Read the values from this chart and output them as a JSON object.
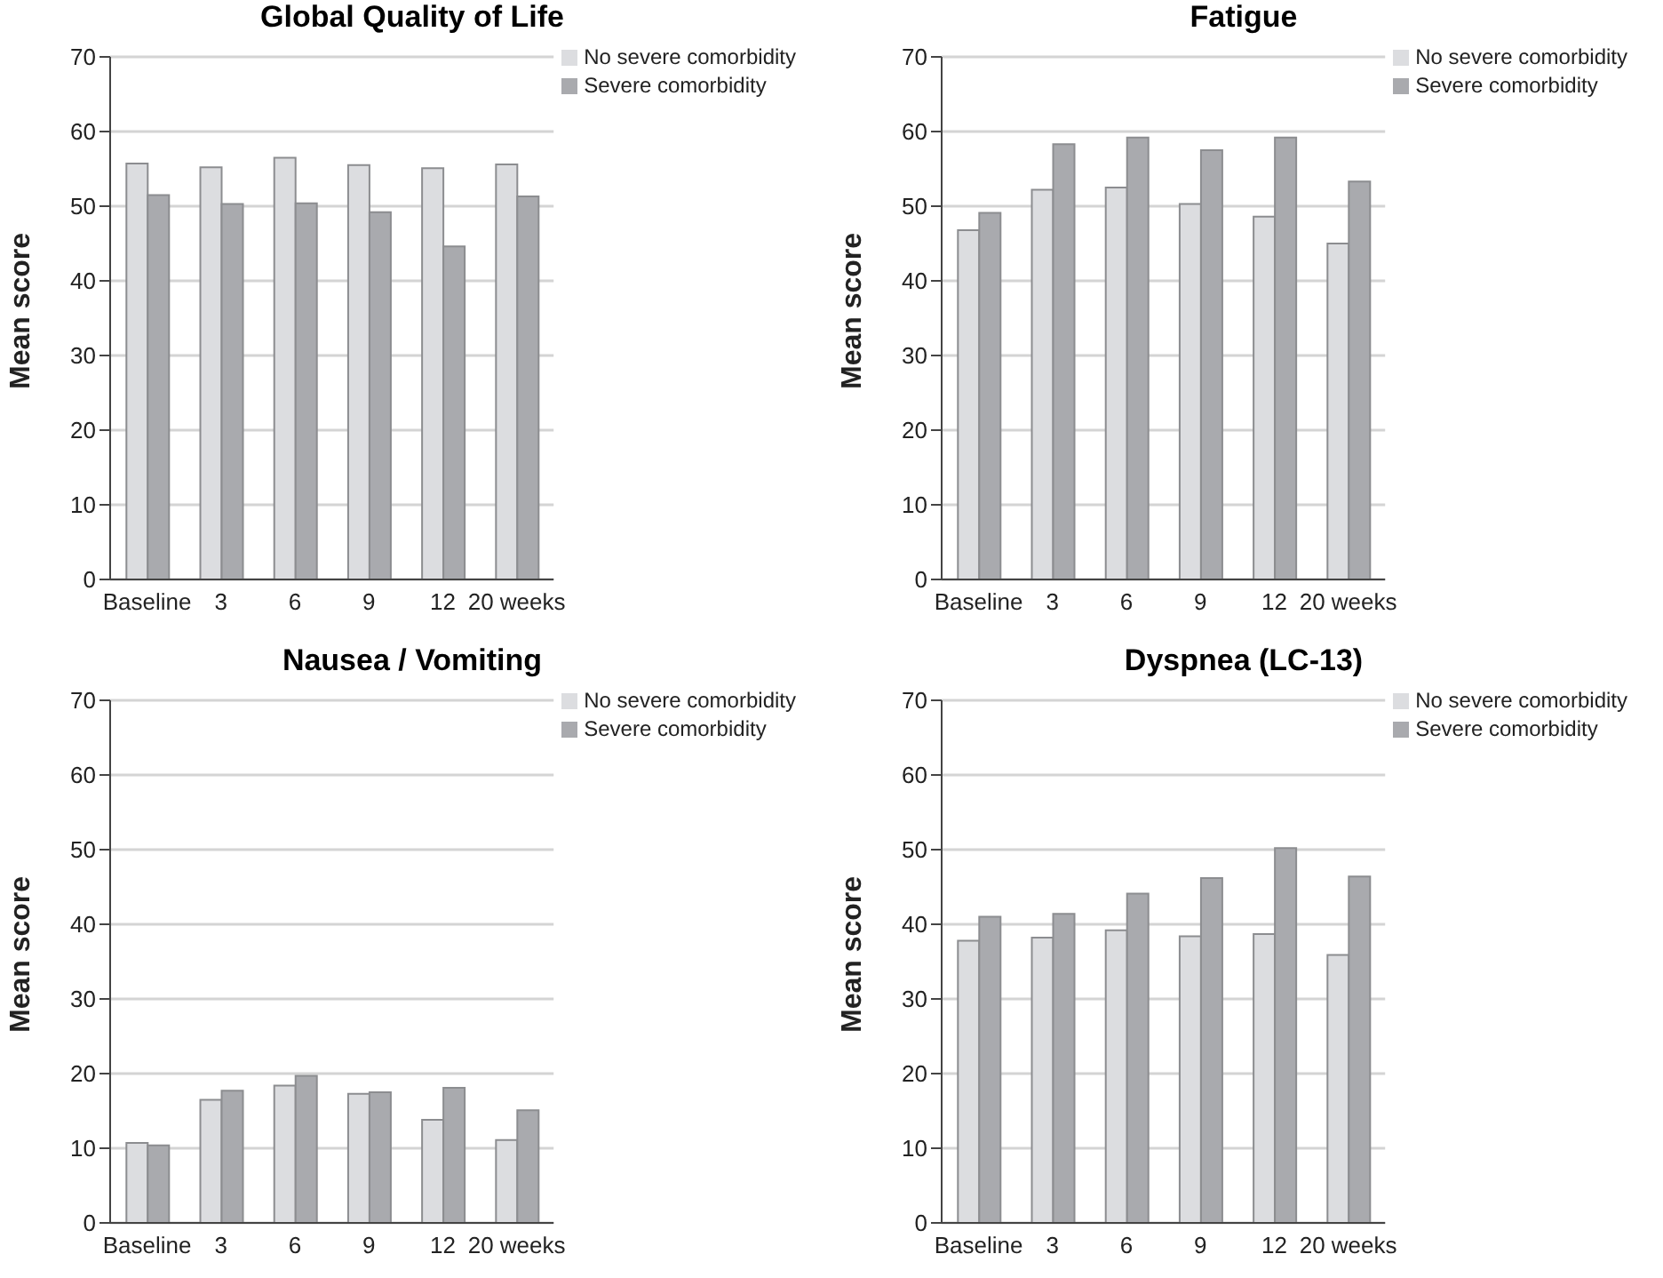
{
  "chart_data": [
    {
      "type": "bar",
      "title": "Global Quality of Life",
      "ylabel": "Mean score",
      "categories": [
        "Baseline",
        "3",
        "6",
        "9",
        "12",
        "20 weeks"
      ],
      "series": [
        {
          "name": "No severe comorbidity",
          "color": "#dcdde0",
          "values": [
            55.7,
            55.2,
            56.5,
            55.5,
            55.1,
            55.6
          ]
        },
        {
          "name": "Severe comorbidity",
          "color": "#a9aaae",
          "values": [
            51.5,
            50.3,
            50.4,
            49.2,
            44.6,
            51.3
          ]
        }
      ],
      "ylim": [
        0,
        70
      ],
      "yticks": [
        0,
        10,
        20,
        30,
        40,
        50,
        60,
        70
      ],
      "grid": "y",
      "legend": "top right"
    },
    {
      "type": "bar",
      "title": "Fatigue",
      "ylabel": "Mean score",
      "categories": [
        "Baseline",
        "3",
        "6",
        "9",
        "12",
        "20 weeks"
      ],
      "series": [
        {
          "name": "No severe comorbidity",
          "color": "#dcdde0",
          "values": [
            46.8,
            52.2,
            52.5,
            50.3,
            48.6,
            45.0
          ]
        },
        {
          "name": "Severe comorbidity",
          "color": "#a9aaae",
          "values": [
            49.1,
            58.3,
            59.2,
            57.5,
            59.2,
            53.3
          ]
        }
      ],
      "ylim": [
        0,
        70
      ],
      "yticks": [
        0,
        10,
        20,
        30,
        40,
        50,
        60,
        70
      ],
      "grid": "y",
      "legend": "top right"
    },
    {
      "type": "bar",
      "title": "Nausea / Vomiting",
      "ylabel": "Mean score",
      "categories": [
        "Baseline",
        "3",
        "6",
        "9",
        "12",
        "20 weeks"
      ],
      "series": [
        {
          "name": "No severe comorbidity",
          "color": "#dcdde0",
          "values": [
            10.7,
            16.5,
            18.4,
            17.3,
            13.8,
            11.1
          ]
        },
        {
          "name": "Severe comorbidity",
          "color": "#a9aaae",
          "values": [
            10.4,
            17.7,
            19.7,
            17.5,
            18.1,
            15.1
          ]
        }
      ],
      "ylim": [
        0,
        70
      ],
      "yticks": [
        0,
        10,
        20,
        30,
        40,
        50,
        60,
        70
      ],
      "grid": "y",
      "legend": "top right"
    },
    {
      "type": "bar",
      "title": "Dyspnea (LC-13)",
      "ylabel": "Mean score",
      "categories": [
        "Baseline",
        "3",
        "6",
        "9",
        "12",
        "20 weeks"
      ],
      "series": [
        {
          "name": "No severe comorbidity",
          "color": "#dcdde0",
          "values": [
            37.8,
            38.2,
            39.2,
            38.4,
            38.7,
            35.9
          ]
        },
        {
          "name": "Severe comorbidity",
          "color": "#a9aaae",
          "values": [
            41.0,
            41.4,
            44.1,
            46.2,
            50.2,
            46.4
          ]
        }
      ],
      "ylim": [
        0,
        70
      ],
      "yticks": [
        0,
        10,
        20,
        30,
        40,
        50,
        60,
        70
      ],
      "grid": "y",
      "legend": "top right"
    }
  ]
}
